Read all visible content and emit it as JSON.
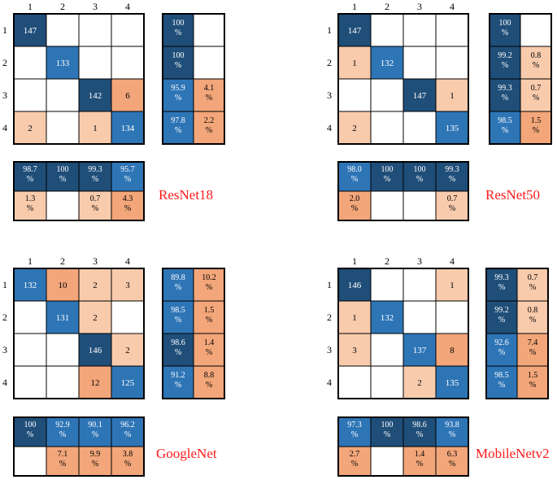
{
  "colors": {
    "dark_blue": "#1f4e79",
    "mid_blue": "#2e75b6",
    "light_blue": "#4a8fcf",
    "dark_orange": "#f2a67a",
    "light_orange": "#f8cbad",
    "border": "#000000",
    "title": "#ff1a1a"
  },
  "chart_data": [
    {
      "type": "heatmap",
      "title": "ResNet18",
      "classes": [
        "1",
        "2",
        "3",
        "4"
      ],
      "matrix": [
        [
          147,
          null,
          null,
          null
        ],
        [
          null,
          133,
          null,
          null
        ],
        [
          null,
          null,
          142,
          6
        ],
        [
          2,
          null,
          1,
          134
        ]
      ],
      "row_summary": [
        [
          "100\n%",
          ""
        ],
        [
          "100\n%",
          ""
        ],
        [
          "95.9\n%",
          "4.1\n%"
        ],
        [
          "97.8\n%",
          "2.2\n%"
        ]
      ],
      "col_summary": [
        [
          "98.7\n%",
          "100\n%",
          "99.3\n%",
          "95.7\n%"
        ],
        [
          "1.3\n%",
          "",
          "0.7\n%",
          "4.3\n%"
        ]
      ]
    },
    {
      "type": "heatmap",
      "title": "ResNet50",
      "classes": [
        "1",
        "2",
        "3",
        "4"
      ],
      "matrix": [
        [
          147,
          null,
          null,
          null
        ],
        [
          1,
          132,
          null,
          null
        ],
        [
          null,
          null,
          147,
          1
        ],
        [
          2,
          null,
          null,
          135
        ]
      ],
      "row_summary": [
        [
          "100\n%",
          ""
        ],
        [
          "99.2\n%",
          "0.8\n%"
        ],
        [
          "99.3\n%",
          "0.7\n%"
        ],
        [
          "98.5\n%",
          "1.5\n%"
        ]
      ],
      "col_summary": [
        [
          "98.0\n%",
          "100\n%",
          "100\n%",
          "99.3\n%"
        ],
        [
          "2.0\n%",
          "",
          "",
          "0.7\n%"
        ]
      ]
    },
    {
      "type": "heatmap",
      "title": "GoogleNet",
      "classes": [
        "1",
        "2",
        "3",
        "4"
      ],
      "matrix": [
        [
          132,
          10,
          2,
          3
        ],
        [
          null,
          131,
          2,
          null
        ],
        [
          null,
          null,
          146,
          2
        ],
        [
          null,
          null,
          12,
          125
        ]
      ],
      "row_summary": [
        [
          "89.8\n%",
          "10.2\n%"
        ],
        [
          "98.5\n%",
          "1.5\n%"
        ],
        [
          "98.6\n%",
          "1.4\n%"
        ],
        [
          "91.2\n%",
          "8.8\n%"
        ]
      ],
      "col_summary": [
        [
          "100\n%",
          "92.9\n%",
          "90.1\n%",
          "96.2\n%"
        ],
        [
          "",
          "7.1\n%",
          "9.9\n%",
          "3.8\n%"
        ]
      ]
    },
    {
      "type": "heatmap",
      "title": "MobileNetv2",
      "classes": [
        "1",
        "2",
        "3",
        "4"
      ],
      "matrix": [
        [
          146,
          null,
          null,
          1
        ],
        [
          1,
          132,
          null,
          null
        ],
        [
          3,
          null,
          137,
          8
        ],
        [
          null,
          null,
          2,
          135
        ]
      ],
      "row_summary": [
        [
          "99.3\n%",
          "0.7\n%"
        ],
        [
          "99.2\n%",
          "0.8\n%"
        ],
        [
          "92.6\n%",
          "7.4\n%"
        ],
        [
          "98.5\n%",
          "1.5\n%"
        ]
      ],
      "col_summary": [
        [
          "97.3\n%",
          "100\n%",
          "98.6\n%",
          "93.8\n%"
        ],
        [
          "2.7\n%",
          "",
          "1.4\n%",
          "6.3\n%"
        ]
      ]
    }
  ]
}
